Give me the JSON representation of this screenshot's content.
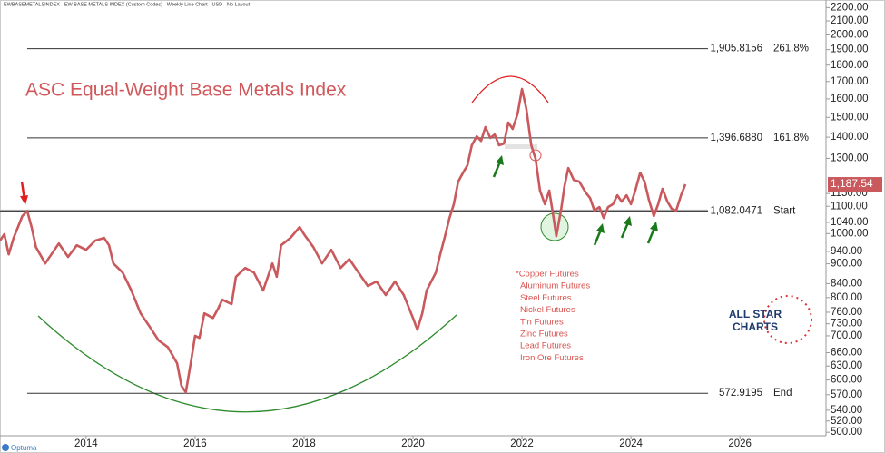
{
  "chart_data": {
    "type": "line",
    "header": "EWBASEMETALSINDEX - EW BASE METALS INDEX (Custom Codes) - Weekly Line Chart - USD - No Layout",
    "title": "ASC Equal-Weight Base Metals Index",
    "notes": [
      "*Copper Futures",
      "Aluminum Futures",
      "Steel Futures",
      "Nickel Futures",
      "Tin Futures",
      "Zinc Futures",
      "Lead Futures",
      "Iron Ore Futures"
    ],
    "logo": [
      "ALL STAR",
      "CHARTS"
    ],
    "footer": "Optuma",
    "log_scale": true,
    "x": [
      2012.42,
      2012.5,
      2012.58,
      2012.67,
      2012.75,
      2012.83,
      2012.92,
      2013.0,
      2013.08,
      2013.25,
      2013.42,
      2013.5,
      2013.67,
      2013.83,
      2014.0,
      2014.17,
      2014.33,
      2014.42,
      2014.5,
      2014.67,
      2014.83,
      2015.0,
      2015.17,
      2015.33,
      2015.5,
      2015.67,
      2015.75,
      2015.83,
      2015.92,
      2016.0,
      2016.08,
      2016.17,
      2016.33,
      2016.42,
      2016.5,
      2016.67,
      2016.75,
      2016.92,
      2017.08,
      2017.25,
      2017.42,
      2017.5,
      2017.58,
      2017.75,
      2017.92,
      2018.0,
      2018.17,
      2018.33,
      2018.5,
      2018.67,
      2018.83,
      2019.0,
      2019.17,
      2019.33,
      2019.5,
      2019.67,
      2019.83,
      2020.0,
      2020.08,
      2020.17,
      2020.25,
      2020.42,
      2020.5,
      2020.58,
      2020.67,
      2020.75,
      2020.83,
      2020.92,
      2021.0,
      2021.08,
      2021.17,
      2021.25,
      2021.33,
      2021.42,
      2021.5,
      2021.58,
      2021.67,
      2021.75,
      2021.83,
      2021.92,
      2022.0,
      2022.08,
      2022.17,
      2022.25,
      2022.33,
      2022.42,
      2022.5,
      2022.58,
      2022.63,
      2022.72,
      2022.78,
      2022.85,
      2022.95,
      2023.05,
      2023.17,
      2023.25,
      2023.33,
      2023.42,
      2023.5,
      2023.58,
      2023.67,
      2023.75,
      2023.83,
      2023.92,
      2024.0,
      2024.08,
      2024.17,
      2024.25,
      2024.33,
      2024.42,
      2024.5,
      2024.58,
      2024.67,
      2024.75,
      2024.83,
      2024.92,
      2025.0
    ],
    "series": [
      {
        "name": "EW BASE METALS INDEX",
        "color": "#c9595c",
        "values": [
          976,
          998,
          930,
          985,
          1023,
          1063,
          1082,
          1023,
          954,
          901,
          945,
          966,
          922,
          960,
          945,
          976,
          985,
          960,
          901,
          873,
          820,
          757,
          722,
          689,
          673,
          636,
          588,
          575,
          636,
          700,
          695,
          757,
          745,
          769,
          794,
          782,
          860,
          887,
          873,
          820,
          901,
          860,
          960,
          985,
          1023,
          998,
          954,
          901,
          945,
          887,
          915,
          873,
          833,
          846,
          807,
          846,
          807,
          745,
          715,
          757,
          820,
          873,
          930,
          985,
          1056,
          1108,
          1199,
          1237,
          1269,
          1361,
          1404,
          1382,
          1450,
          1396,
          1413,
          1361,
          1369,
          1473,
          1441,
          1520,
          1656,
          1545,
          1361,
          1297,
          1162,
          1108,
          1162,
          1056,
          991,
          1090,
          1180,
          1257,
          1206,
          1199,
          1154,
          1132,
          1083,
          1097,
          1056,
          1097,
          1108,
          1143,
          1118,
          1143,
          1108,
          1162,
          1237,
          1199,
          1125,
          1063,
          1108,
          1169,
          1118,
          1090,
          1083,
          1143,
          1187.54
        ],
        "value_labels": [
          null,
          null,
          null,
          null,
          null,
          null,
          null,
          null,
          null,
          null,
          null,
          null,
          null,
          null,
          null,
          null,
          null,
          null,
          null,
          null,
          null,
          null,
          null,
          null,
          null,
          null,
          null,
          null,
          null,
          null,
          null,
          null,
          null,
          null,
          null,
          null,
          null,
          null,
          null,
          null,
          null,
          null,
          null,
          null,
          null,
          null,
          null,
          null,
          null,
          null,
          null,
          null,
          null,
          null,
          null,
          null,
          null,
          null,
          null,
          null,
          null,
          null,
          null,
          null,
          null,
          null,
          null,
          null,
          null,
          null,
          null,
          null,
          null,
          null,
          null,
          null,
          null,
          null,
          null,
          null,
          null,
          null,
          null,
          null,
          null,
          null,
          null,
          null,
          null,
          null,
          null,
          null,
          null,
          null,
          null,
          null,
          null,
          null,
          null,
          null,
          null,
          null,
          null,
          null,
          null,
          null,
          null,
          null,
          null,
          null,
          null,
          null,
          null,
          null,
          null,
          null,
          "1,187.54"
        ]
      }
    ],
    "levels": [
      {
        "value": 1905.8156,
        "label": "1,905.8156",
        "tag": "261.8%"
      },
      {
        "value": 1396.688,
        "label": "1,396.6880",
        "tag": "161.8%"
      },
      {
        "value": 1082.0471,
        "label": "1,082.0471",
        "tag": "Start"
      },
      {
        "value": 572.9195,
        "label": "572.9195",
        "tag": "End"
      }
    ],
    "xlim": [
      2012.42,
      2027.58
    ],
    "xticks": [
      2014,
      2016,
      2018,
      2020,
      2022,
      2024,
      2026
    ],
    "ylim": [
      494,
      2259
    ],
    "yticks": [
      {
        "value": 2200,
        "label": "2200.00"
      },
      {
        "value": 2100,
        "label": "2100.00"
      },
      {
        "value": 2000,
        "label": "2000.00"
      },
      {
        "value": 1900,
        "label": "1900.00"
      },
      {
        "value": 1800,
        "label": "1800.00"
      },
      {
        "value": 1700,
        "label": "1700.00"
      },
      {
        "value": 1600,
        "label": "1600.00"
      },
      {
        "value": 1500,
        "label": "1500.00"
      },
      {
        "value": 1400,
        "label": "1400.00"
      },
      {
        "value": 1300,
        "label": "1300.00"
      },
      {
        "value": 1150,
        "label": "1150.00"
      },
      {
        "value": 1100,
        "label": "1100.00"
      },
      {
        "value": 1040,
        "label": "1040.00"
      },
      {
        "value": 1000,
        "label": "1000.00"
      },
      {
        "value": 940,
        "label": "940.00"
      },
      {
        "value": 900,
        "label": "900.00"
      },
      {
        "value": 840,
        "label": "840.00"
      },
      {
        "value": 800,
        "label": "800.00"
      },
      {
        "value": 760,
        "label": "760.00"
      },
      {
        "value": 730,
        "label": "730.00"
      },
      {
        "value": 700,
        "label": "700.00"
      },
      {
        "value": 660,
        "label": "660.00"
      },
      {
        "value": 630,
        "label": "630.00"
      },
      {
        "value": 600,
        "label": "600.00"
      },
      {
        "value": 570,
        "label": "570.00"
      },
      {
        "value": 540,
        "label": "540.00"
      },
      {
        "value": 520,
        "label": "520.00"
      },
      {
        "value": 500,
        "label": "500.00"
      }
    ]
  }
}
